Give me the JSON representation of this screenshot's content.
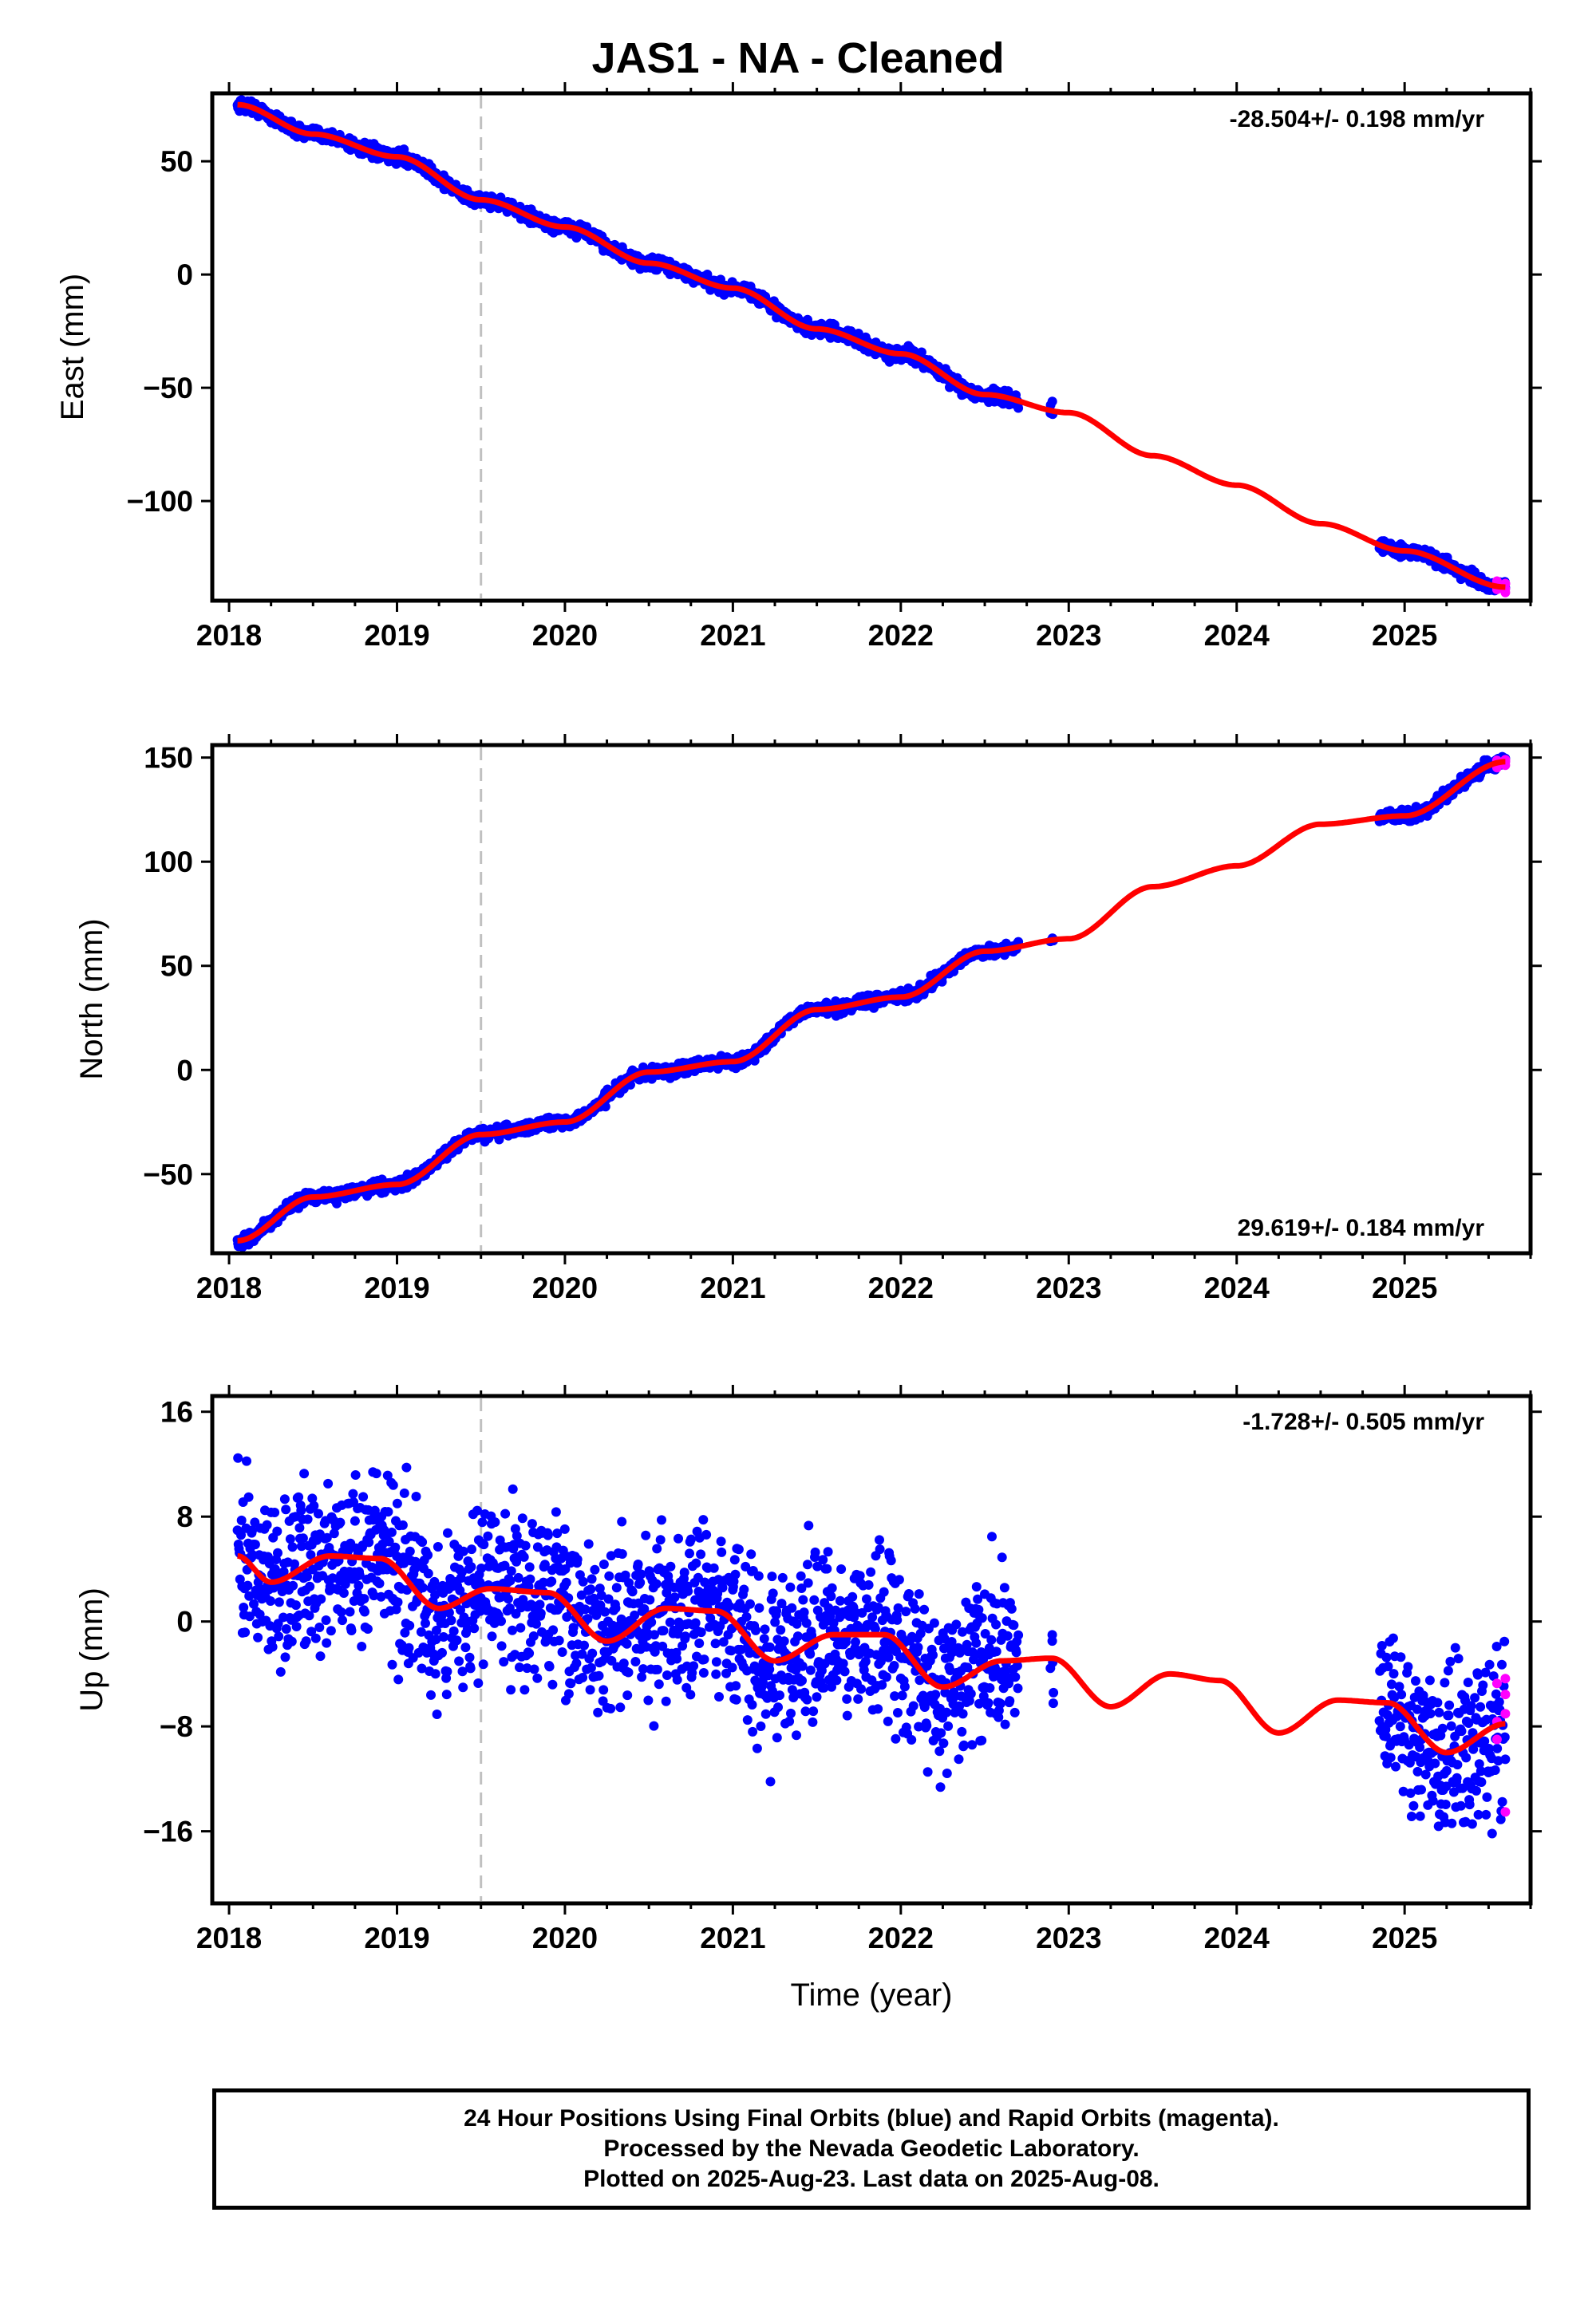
{
  "title": "JAS1  - NA - Cleaned",
  "footer": {
    "line1": "24 Hour Positions Using Final Orbits (blue) and Rapid Orbits (magenta).",
    "line2": "Processed by the Nevada Geodetic Laboratory.",
    "line3": "Plotted on 2025-Aug-23. Last data on 2025-Aug-08."
  },
  "colors": {
    "final": "#0000ff",
    "rapid": "#ff00ff",
    "model": "#ff0000",
    "marker": "#c0c0c0"
  },
  "chart_data": [
    {
      "type": "scatter",
      "ylabel": "East (mm)",
      "xlim": [
        2017.9,
        2025.75
      ],
      "ylim": [
        -144,
        80
      ],
      "xticks": [
        2018,
        2019,
        2020,
        2021,
        2022,
        2023,
        2024,
        2025
      ],
      "yticks": [
        -100,
        -50,
        0,
        50
      ],
      "ytick_labels": [
        "−100",
        "−50",
        "0",
        "50"
      ],
      "rate": "-28.504+/- 0.198 mm/yr",
      "rate_position": "top-right",
      "equipment_change": 2019.5,
      "trend": -28.5,
      "data_segments": [
        [
          2018.05,
          2022.7
        ],
        [
          2022.9,
          2022.9
        ],
        [
          2024.85,
          2025.6
        ]
      ],
      "rapid_x": [
        2025.55,
        2025.6
      ],
      "noise": 1.4,
      "model": {
        "x": [
          2018.05,
          2018.5,
          2019.0,
          2019.5,
          2020.0,
          2020.5,
          2021.0,
          2021.5,
          2022.0,
          2022.5,
          2023.0,
          2023.5,
          2024.0,
          2024.5,
          2025.0,
          2025.6
        ],
        "y": [
          75,
          62,
          52,
          33,
          21,
          5,
          -6,
          -24,
          -35,
          -53,
          -61,
          -80,
          -93,
          -110,
          -122,
          -138
        ]
      }
    },
    {
      "type": "scatter",
      "ylabel": "North (mm)",
      "xlim": [
        2017.9,
        2025.75
      ],
      "ylim": [
        -88,
        156
      ],
      "xticks": [
        2018,
        2019,
        2020,
        2021,
        2022,
        2023,
        2024,
        2025
      ],
      "yticks": [
        -50,
        0,
        50,
        100,
        150
      ],
      "ytick_labels": [
        "−50",
        "0",
        "50",
        "100",
        "150"
      ],
      "rate": "29.619+/- 0.184 mm/yr",
      "rate_position": "bottom-right",
      "equipment_change": 2019.5,
      "trend": 29.6,
      "data_segments": [
        [
          2018.05,
          2022.7
        ],
        [
          2022.9,
          2022.9
        ],
        [
          2024.85,
          2025.6
        ]
      ],
      "rapid_x": [
        2025.55,
        2025.6
      ],
      "noise": 1.4,
      "model": {
        "x": [
          2018.05,
          2018.5,
          2019.0,
          2019.5,
          2020.0,
          2020.5,
          2021.0,
          2021.5,
          2022.0,
          2022.5,
          2023.0,
          2023.5,
          2024.0,
          2024.5,
          2025.0,
          2025.6
        ],
        "y": [
          -82,
          -61,
          -55,
          -31,
          -25,
          -1,
          4,
          29,
          35,
          57,
          63,
          88,
          98,
          118,
          122,
          148
        ]
      }
    },
    {
      "type": "scatter",
      "xlabel": "Time (year)",
      "ylabel": "Up (mm)",
      "xlim": [
        2017.9,
        2025.75
      ],
      "ylim": [
        -21.5,
        17.2
      ],
      "xticks": [
        2018,
        2019,
        2020,
        2021,
        2022,
        2023,
        2024,
        2025
      ],
      "yticks": [
        -16,
        -8,
        0,
        8,
        16
      ],
      "ytick_labels": [
        "−16",
        "−8",
        "0",
        "8",
        "16"
      ],
      "rate": "-1.728+/- 0.505 mm/yr",
      "rate_position": "top-right",
      "equipment_change": 2019.5,
      "trend": -1.7,
      "data_segments": [
        [
          2018.05,
          2022.7
        ],
        [
          2022.9,
          2022.9
        ],
        [
          2024.85,
          2025.6
        ]
      ],
      "rapid_x": [
        2025.55,
        2025.6
      ],
      "noise": 3.2,
      "model": {
        "x": [
          2018.05,
          2018.25,
          2018.6,
          2018.9,
          2019.25,
          2019.55,
          2019.9,
          2020.25,
          2020.6,
          2020.9,
          2021.25,
          2021.6,
          2021.9,
          2022.25,
          2022.6,
          2022.9,
          2023.25,
          2023.6,
          2023.9,
          2024.25,
          2024.6,
          2024.9,
          2025.25,
          2025.6
        ],
        "y": [
          5,
          3,
          5,
          4.8,
          1,
          2.5,
          2.2,
          -1.5,
          1,
          0.8,
          -3,
          -1,
          -1,
          -5,
          -3,
          -2.8,
          -6.5,
          -4,
          -4.5,
          -8.5,
          -6,
          -6.2,
          -10,
          -7.8
        ]
      }
    }
  ]
}
